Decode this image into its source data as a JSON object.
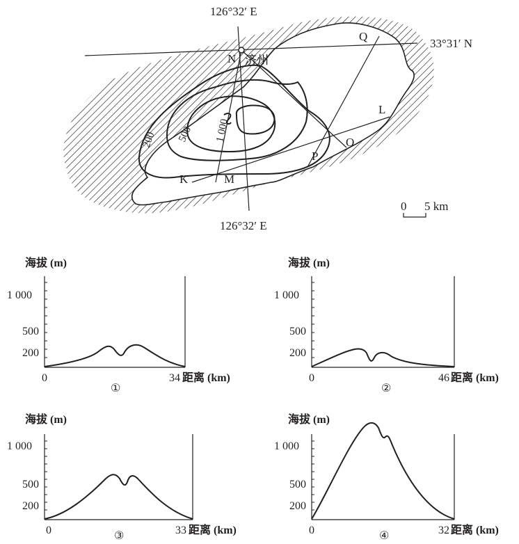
{
  "map": {
    "lon_top": "126°32′ E",
    "lon_bottom": "126°32′ E",
    "lat_label": "33°31′ N",
    "city": "济州",
    "points": {
      "N": "N",
      "Q": "Q",
      "L": "L",
      "O": "O",
      "P": "P",
      "K": "K",
      "M": "M"
    },
    "contours": [
      "200",
      "500",
      "1 000"
    ],
    "scale": {
      "zero": "0",
      "value": "5 km"
    }
  },
  "profiles": [
    {
      "id": "①",
      "ylabel": "海拔 (m)",
      "yticks": [
        "1 000",
        "500",
        "200"
      ],
      "x0": "0",
      "xmax": "34",
      "xlabel": "距离 (km)"
    },
    {
      "id": "②",
      "ylabel": "海拔 (m)",
      "yticks": [
        "1 000",
        "500",
        "200"
      ],
      "x0": "0",
      "xmax": "46",
      "xlabel": "距离 (km)"
    },
    {
      "id": "③",
      "ylabel": "海拔 (m)",
      "yticks": [
        "1 000",
        "500",
        "200"
      ],
      "x0": "0",
      "xmax": "33",
      "xlabel": "距离 (km)"
    },
    {
      "id": "④",
      "ylabel": "海拔 (m)",
      "yticks": [
        "1 000",
        "500",
        "200"
      ],
      "x0": "0",
      "xmax": "32",
      "xlabel": "距离 (km)"
    }
  ]
}
